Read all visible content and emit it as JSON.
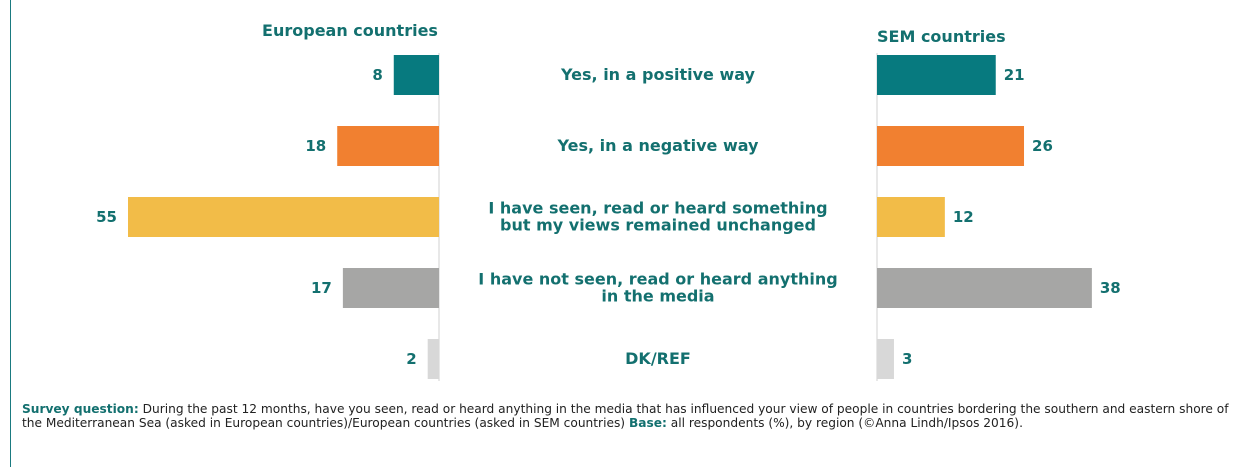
{
  "colors": {
    "text": "#13706f",
    "rule": "#1a7a80",
    "axis": "#d0d0d0"
  },
  "chart_data": {
    "type": "bar",
    "orientation": "horizontal",
    "layout": "butterfly",
    "categories": [
      [
        "Yes, in a positive way"
      ],
      [
        "Yes, in a negative way"
      ],
      [
        "I have seen, read or heard something",
        "but my views remained unchanged"
      ],
      [
        "I have not seen, read or heard anything",
        "in the media"
      ],
      [
        "DK/REF"
      ]
    ],
    "bar_colors": [
      "#077a7f",
      "#f18030",
      "#f2bc48",
      "#a6a6a5",
      "#d8d8d8"
    ],
    "unit": "%",
    "series": [
      {
        "name": "European countries",
        "values": [
          8,
          18,
          55,
          17,
          2
        ],
        "direction": "left"
      },
      {
        "name": "SEM countries",
        "values": [
          21,
          26,
          12,
          38,
          3
        ],
        "direction": "right"
      }
    ],
    "xlim": [
      0,
      55
    ],
    "grid": false,
    "legend": "none"
  },
  "note": {
    "q_label": "Survey question:",
    "q_text": " During the past 12 months, have you seen, read or heard anything in the media that has influenced your view of people in countries bordering the southern and eastern shore of the Mediterranean Sea (asked in European countries)/European countries (asked in SEM countries) ",
    "base_label": "Base:",
    "base_text": " all respondents (%), by region (©Anna Lindh/Ipsos 2016)."
  }
}
